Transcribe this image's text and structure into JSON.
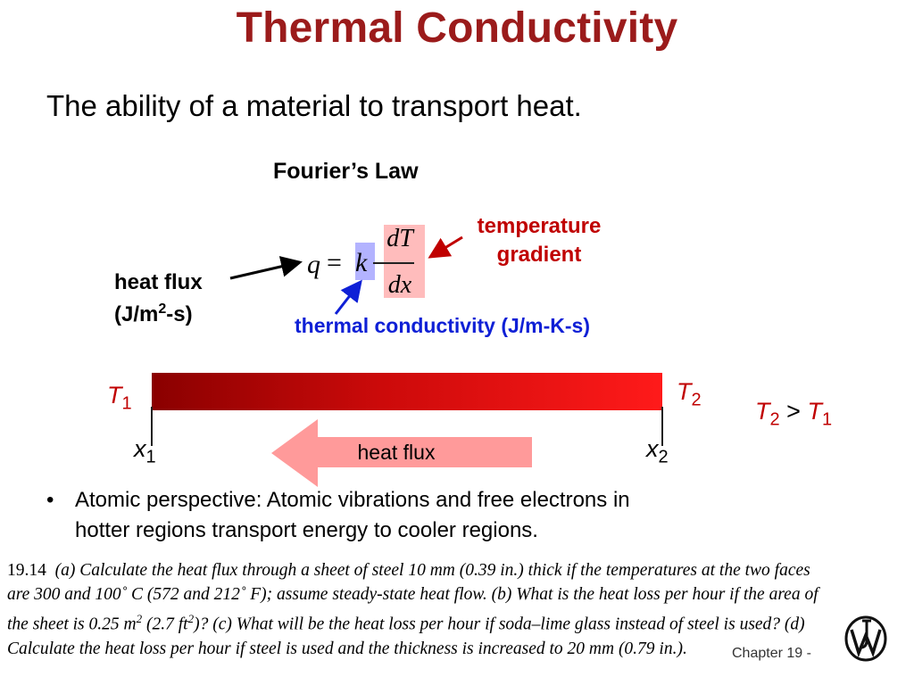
{
  "slide": {
    "title": "Thermal Conductivity",
    "subtitle": "The ability of a material to transport heat.",
    "law_title": "Fourier’s Law",
    "equation": {
      "q": "q",
      "equals": "=",
      "k": "k",
      "numerator": "dT",
      "denominator": "dx"
    },
    "labels": {
      "temperature_gradient_line1": "temperature",
      "temperature_gradient_line2": "gradient",
      "heat_flux_line1": "heat flux",
      "heat_flux_line2_prefix": "(J/m",
      "heat_flux_line2_sup": "2",
      "heat_flux_line2_suffix": "-s)",
      "thermal_conductivity": "thermal conductivity (J/m-K-s)"
    },
    "diagram": {
      "t1_letter": "T",
      "t1_sub": "1",
      "t2_letter": "T",
      "t2_sub": "2",
      "x1_letter": "x",
      "x1_sub": "1",
      "x2_letter": "x",
      "x2_sub": "2",
      "arrow_label": "heat flux",
      "relation": {
        "left_letter": "T",
        "left_sub": "2",
        "op": ">",
        "right_letter": "T",
        "right_sub": "1"
      },
      "colors": {
        "bar_start": "#8a0000",
        "bar_end": "#ff1a1a",
        "arrow_fill": "#ff9a9a",
        "equation_k_highlight": "#b3b3ff",
        "equation_grad_highlight": "#ffbcbc"
      }
    },
    "bullet": {
      "symbol": "•",
      "line1": "Atomic perspective:  Atomic vibrations and free electrons in",
      "line2": "hotter regions transport energy to cooler regions."
    },
    "problem": {
      "number": "19.14",
      "part1": "(a) Calculate the heat flux through a sheet of steel 10 mm (0.39 in.) thick if the temperatures at the two faces are 300 and 100˚ C (572 and 212˚ F); assume steady-state heat flow. (b) What is the heat loss per hour if the area of the sheet is 0.25 m",
      "sup1": "2",
      "part2": " (2.7 ft",
      "sup2": "2",
      "part3": ")? (c) What will be the heat loss per hour if soda–lime glass instead of steel is used? (d) Calculate the heat loss per hour if steel is used and the thickness is increased to 20 mm (0.79 in.)."
    },
    "footer": "Chapter 19 -",
    "logo_icon": "wiley-logo-icon"
  }
}
